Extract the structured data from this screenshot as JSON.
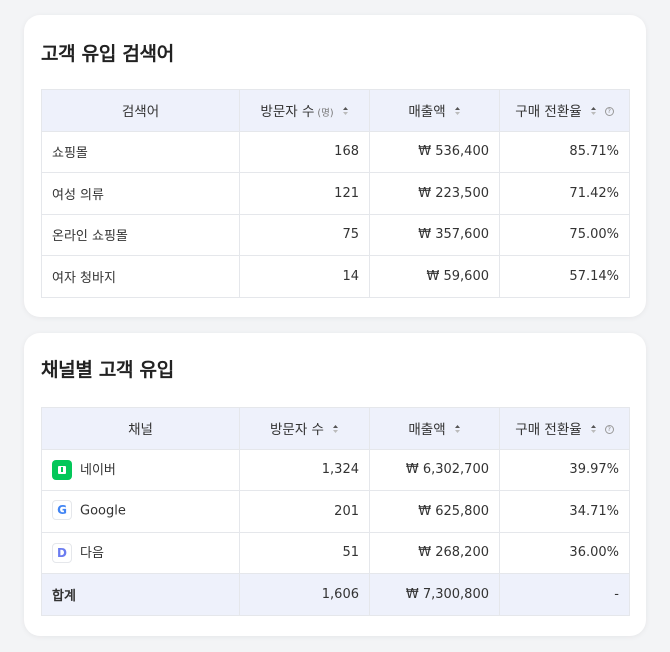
{
  "search_card": {
    "title": "고객 유입 검색어",
    "headers": {
      "keyword": "검색어",
      "visitors": "방문자 수",
      "visitors_unit": "(명)",
      "revenue": "매출액",
      "conversion": "구매 전환율"
    },
    "rows": [
      {
        "name": "쇼핑몰",
        "visitors": "168",
        "revenue": "₩ 536,400",
        "conversion": "85.71%"
      },
      {
        "name": "여성 의류",
        "visitors": "121",
        "revenue": "₩ 223,500",
        "conversion": "71.42%"
      },
      {
        "name": "온라인 쇼핑몰",
        "visitors": "75",
        "revenue": "₩ 357,600",
        "conversion": "75.00%"
      },
      {
        "name": "여자 청바지",
        "visitors": "14",
        "revenue": "₩ 59,600",
        "conversion": "57.14%"
      }
    ]
  },
  "channel_card": {
    "title": "채널별 고객 유입",
    "headers": {
      "channel": "채널",
      "visitors": "방문자 수",
      "revenue": "매출액",
      "conversion": "구매 전환율"
    },
    "rows": [
      {
        "logo": "naver-logo-icon",
        "logo_glyph": "",
        "name": "네이버",
        "visitors": "1,324",
        "revenue": "₩ 6,302,700",
        "conversion": "39.97%"
      },
      {
        "logo": "google-logo-icon",
        "logo_glyph": "G",
        "name": "Google",
        "visitors": "201",
        "revenue": "₩ 625,800",
        "conversion": "34.71%"
      },
      {
        "logo": "daum-logo-icon",
        "logo_glyph": "D",
        "name": "다음",
        "visitors": "51",
        "revenue": "₩ 268,200",
        "conversion": "36.00%"
      }
    ],
    "total": {
      "name": "합계",
      "visitors": "1,606",
      "revenue": "₩ 7,300,800",
      "conversion": "-"
    }
  },
  "icons": {
    "help": "?",
    "sort": "sort-icon",
    "help_name": "help-circle-icon"
  },
  "colors": {
    "header_bg": "#eef1fb",
    "naver_green": "#03c75a",
    "border": "#e5e7eb"
  }
}
